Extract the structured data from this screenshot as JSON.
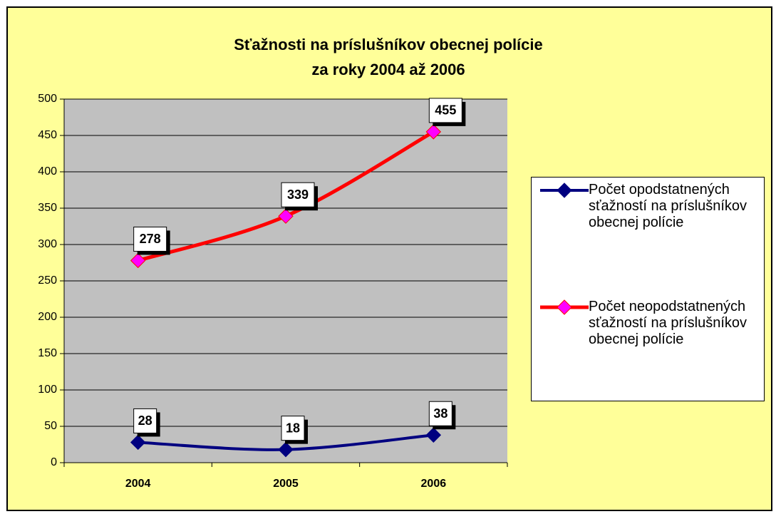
{
  "chart_data": {
    "type": "line",
    "title": [
      "Sťažnosti na príslušníkov obecnej polície",
      "za roky 2004 až 2006"
    ],
    "categories": [
      "2004",
      "2005",
      "2006"
    ],
    "series": [
      {
        "name": "Počet opodstatnených sťažností na príslušníkov obecnej polície",
        "color": "#000080",
        "marker_color": "#000080",
        "values": [
          28,
          18,
          38
        ]
      },
      {
        "name": "Počet neopodstatnených sťažností na príslušníkov obecnej polície",
        "color": "#ff0000",
        "marker_color": "#ff00ff",
        "values": [
          278,
          339,
          455
        ]
      }
    ],
    "ylim": [
      0,
      500
    ],
    "yticks": [
      0,
      50,
      100,
      150,
      200,
      250,
      300,
      350,
      400,
      450,
      500
    ],
    "grid": true,
    "legend": "right",
    "smooth": true
  }
}
